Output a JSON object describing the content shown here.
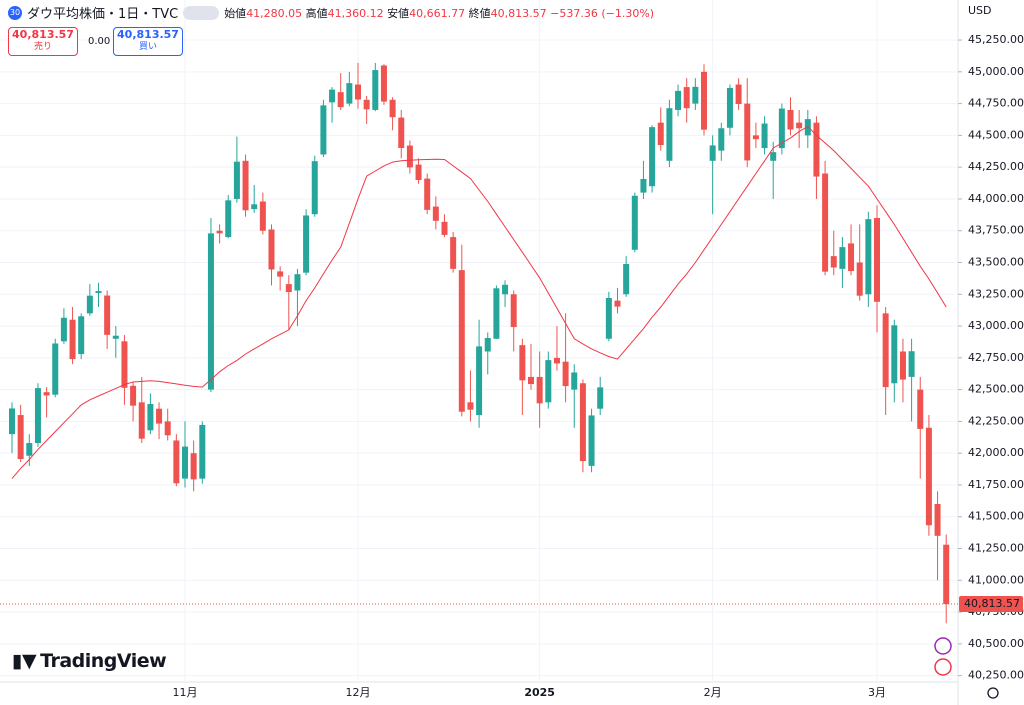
{
  "header": {
    "badge": "30",
    "title": "ダウ平均株価・1日・TVC",
    "open_label": "始値",
    "open": "41,280.05",
    "high_label": "高値",
    "high": "41,360.12",
    "low_label": "安値",
    "low": "40,661.77",
    "close_label": "終値",
    "close": "40,813.57",
    "change": "−537.36 (−1.30%)"
  },
  "sell": {
    "price": "40,813.57",
    "label": "売り"
  },
  "spread": "0.00",
  "buy": {
    "price": "40,813.57",
    "label": "買い"
  },
  "currency": "USD",
  "logo": "TradingView",
  "chart_data": {
    "type": "candlestick",
    "up_color": "#26a69a",
    "down_color": "#ef5350",
    "grid": true,
    "categories": [
      null,
      null,
      null,
      null,
      null,
      null,
      null,
      null,
      null,
      null,
      null,
      null,
      null,
      null,
      null,
      null,
      null,
      null,
      null,
      null,
      "11月",
      null,
      null,
      null,
      null,
      null,
      null,
      null,
      null,
      null,
      null,
      null,
      null,
      null,
      null,
      null,
      null,
      null,
      null,
      null,
      "12月",
      null,
      null,
      null,
      null,
      null,
      null,
      null,
      null,
      null,
      null,
      null,
      null,
      null,
      null,
      null,
      null,
      null,
      null,
      null,
      null,
      "2025",
      null,
      null,
      null,
      null,
      null,
      null,
      null,
      null,
      null,
      null,
      null,
      null,
      null,
      null,
      null,
      null,
      null,
      null,
      null,
      "2月",
      null,
      null,
      null,
      null,
      null,
      null,
      null,
      null,
      null,
      null,
      null,
      null,
      null,
      null,
      null,
      null,
      null,
      null,
      "3月",
      null,
      null,
      null,
      null,
      null,
      null,
      null,
      null
    ],
    "open": [
      42150,
      42300,
      41980,
      42080,
      42480,
      42460,
      42880,
      43050,
      42780,
      43100,
      43260,
      43240,
      42900,
      42880,
      42530,
      42400,
      42180,
      42350,
      42250,
      42100,
      41800,
      42000,
      41800,
      42500,
      43750,
      43700,
      44000,
      44300,
      43920,
      43980,
      43760,
      43430,
      43330,
      43280,
      43420,
      43880,
      44350,
      44760,
      44840,
      44750,
      44900,
      44780,
      44700,
      45050,
      44780,
      44640,
      44420,
      44270,
      44160,
      43940,
      43820,
      43700,
      43440,
      42400,
      42300,
      42800,
      42900,
      43250,
      43250,
      42850,
      42600,
      42600,
      42400,
      42750,
      42720,
      42500,
      42550,
      41900,
      42350,
      42900,
      43200,
      43250,
      43600,
      44050,
      44100,
      44600,
      44300,
      44700,
      44880,
      44750,
      45000,
      44300,
      44380,
      44560,
      44900,
      44750,
      44500,
      44400,
      44300,
      44400,
      44700,
      44600,
      44500,
      44600,
      44200,
      43550,
      43450,
      43650,
      43500,
      43250,
      43850,
      43100,
      42550,
      42800,
      42600,
      42500,
      42200,
      41600,
      41280.05
    ],
    "high": [
      42400,
      42380,
      42150,
      42550,
      42520,
      42900,
      43140,
      43150,
      43100,
      43330,
      43340,
      43280,
      43000,
      42930,
      42560,
      42600,
      42470,
      42400,
      42350,
      42150,
      42250,
      42100,
      42250,
      43850,
      43800,
      44030,
      44490,
      44350,
      44110,
      44050,
      43800,
      43470,
      43400,
      43450,
      43920,
      44340,
      44780,
      44880,
      44990,
      45000,
      45070,
      44810,
      45070,
      45060,
      44800,
      44700,
      44460,
      44320,
      44200,
      44020,
      43880,
      43740,
      43640,
      42650,
      43050,
      42950,
      43320,
      43360,
      43280,
      42900,
      42860,
      42800,
      42800,
      43000,
      43100,
      42700,
      42580,
      42350,
      42600,
      43270,
      43300,
      43550,
      44050,
      44300,
      44580,
      44720,
      44780,
      44900,
      44950,
      44950,
      45060,
      44500,
      44600,
      44900,
      44950,
      44950,
      44600,
      44650,
      44450,
      44750,
      44800,
      44700,
      44700,
      44650,
      44300,
      43750,
      43700,
      43800,
      43800,
      43900,
      43950,
      43150,
      43050,
      42900,
      42900,
      42600,
      42300,
      41700,
      41360.12
    ],
    "low": [
      42000,
      41930,
      41900,
      42050,
      42280,
      42440,
      42860,
      42700,
      42740,
      43080,
      43150,
      42820,
      42750,
      42380,
      42250,
      42080,
      42150,
      42110,
      42100,
      41740,
      41730,
      41700,
      41760,
      42480,
      43650,
      43690,
      43970,
      43860,
      43890,
      43720,
      43320,
      43280,
      42970,
      43000,
      43400,
      43860,
      44330,
      44600,
      44700,
      44730,
      44710,
      44590,
      44690,
      44740,
      44540,
      44320,
      44200,
      44120,
      43880,
      43760,
      43700,
      43420,
      42290,
      42250,
      42200,
      42620,
      42900,
      43150,
      42800,
      42300,
      42500,
      42200,
      42350,
      42650,
      42400,
      42200,
      41850,
      41850,
      42300,
      42880,
      43100,
      43230,
      43580,
      44000,
      44050,
      44380,
      44250,
      44650,
      44600,
      44700,
      44500,
      43880,
      44300,
      44500,
      44700,
      44250,
      44400,
      44350,
      44000,
      44350,
      44500,
      44400,
      44400,
      44000,
      43400,
      43400,
      43300,
      43400,
      43200,
      43150,
      42950,
      42300,
      42400,
      42400,
      42250,
      41800,
      41350,
      41000,
      40661.77
    ],
    "close": [
      42352,
      41954,
      42080,
      42512,
      42454,
      42863,
      43065,
      42740,
      43077,
      43239,
      43275,
      42931,
      42924,
      42514,
      42374,
      42114,
      42387,
      42233,
      42141,
      41763,
      42052,
      41794,
      42222,
      43729,
      43729,
      43989,
      44293,
      43911,
      43958,
      43750,
      43445,
      43389,
      43268,
      43408,
      43870,
      44297,
      44736,
      44860,
      44722,
      44911,
      44782,
      44705,
      45014,
      44766,
      44643,
      44401,
      44248,
      44149,
      43914,
      43828,
      43717,
      43450,
      42326,
      42342,
      42840,
      42906,
      43297,
      43325,
      42992,
      42573,
      42544,
      42392,
      42732,
      42706,
      42528,
      42635,
      41938,
      42297,
      42518,
      43221,
      43153,
      43488,
      44025,
      44157,
      44565,
      44424,
      44714,
      44850,
      44714,
      44882,
      44545,
      44421,
      44556,
      44873,
      44747,
      44303,
      44470,
      44593,
      44368,
      44711,
      44546,
      44556,
      44628,
      44176,
      43428,
      43461,
      43621,
      43433,
      43239,
      43841,
      43191,
      42520,
      43006,
      42579,
      42802,
      42191,
      41433,
      41350,
      40813.57
    ],
    "ma": {
      "color": "#f23645",
      "values": [
        41800,
        41880,
        41950,
        42030,
        42100,
        42170,
        42240,
        42310,
        42380,
        42420,
        42450,
        42480,
        42510,
        42540,
        42560,
        42565,
        42570,
        42565,
        42555,
        42545,
        42535,
        42525,
        42520,
        42580,
        42640,
        42690,
        42730,
        42780,
        42820,
        42860,
        42900,
        42935,
        42970,
        43080,
        43200,
        43300,
        43410,
        43520,
        43620,
        43810,
        44000,
        44180,
        44220,
        44260,
        44290,
        44300,
        44305,
        44308,
        44310,
        44312,
        44310,
        44260,
        44210,
        44160,
        44070,
        43980,
        43880,
        43780,
        43680,
        43580,
        43480,
        43380,
        43260,
        43140,
        43020,
        42900,
        42860,
        42820,
        42790,
        42760,
        42740,
        42820,
        42900,
        42980,
        43070,
        43150,
        43240,
        43330,
        43410,
        43500,
        43600,
        43700,
        43800,
        43900,
        44000,
        44100,
        44200,
        44300,
        44400,
        44440,
        44480,
        44530,
        44570,
        44500,
        44440,
        44380,
        44310,
        44240,
        44170,
        44100,
        44000,
        43900,
        43800,
        43690,
        43580,
        43470,
        43370,
        43260,
        43150
      ]
    },
    "last_price": {
      "value": 40813.57,
      "label": "40,813.57"
    },
    "ylim": [
      40200,
      45565
    ],
    "yticks": [
      {
        "value": 40250,
        "label": "40,250.00"
      },
      {
        "value": 40500,
        "label": "40,500.00"
      },
      {
        "value": 40750,
        "label": "40,750.00"
      },
      {
        "value": 41000,
        "label": "41,000.00"
      },
      {
        "value": 41250,
        "label": "41,250.00"
      },
      {
        "value": 41500,
        "label": "41,500.00"
      },
      {
        "value": 41750,
        "label": "41,750.00"
      },
      {
        "value": 42000,
        "label": "42,000.00"
      },
      {
        "value": 42250,
        "label": "42,250.00"
      },
      {
        "value": 42500,
        "label": "42,500.00"
      },
      {
        "value": 42750,
        "label": "42,750.00"
      },
      {
        "value": 43000,
        "label": "43,000.00"
      },
      {
        "value": 43250,
        "label": "43,250.00"
      },
      {
        "value": 43500,
        "label": "43,500.00"
      },
      {
        "value": 43750,
        "label": "43,750.00"
      },
      {
        "value": 44000,
        "label": "44,000.00"
      },
      {
        "value": 44250,
        "label": "44,250.00"
      },
      {
        "value": 44500,
        "label": "44,500.00"
      },
      {
        "value": 44750,
        "label": "44,750.00"
      },
      {
        "value": 45000,
        "label": "45,000.00"
      },
      {
        "value": 45250,
        "label": "45,250.00"
      }
    ]
  }
}
